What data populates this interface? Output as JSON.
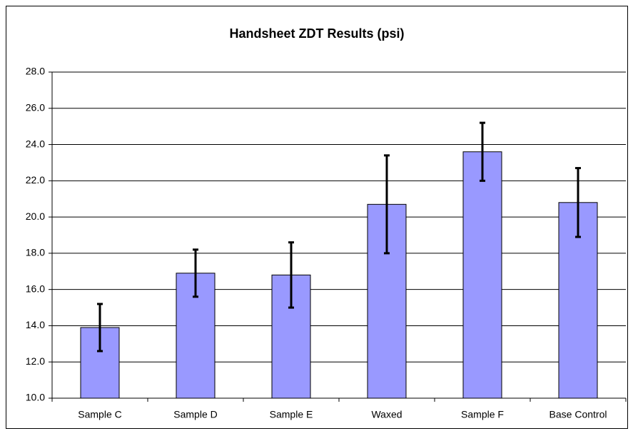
{
  "chart_data": {
    "type": "bar",
    "title": "Handsheet ZDT Results  (psi)",
    "categories": [
      "Sample C",
      "Sample D",
      "Sample E",
      "Waxed",
      "Sample F",
      "Base Control"
    ],
    "values": [
      13.9,
      16.9,
      16.8,
      20.7,
      23.6,
      20.8
    ],
    "errors": [
      1.3,
      1.3,
      1.8,
      2.7,
      1.6,
      1.9
    ],
    "color": "#9999ff",
    "ylim": [
      10,
      28
    ],
    "yticks": [
      {
        "value": 10,
        "label": "10.0"
      },
      {
        "value": 12,
        "label": "12.0"
      },
      {
        "value": 14,
        "label": "14.0"
      },
      {
        "value": 16,
        "label": "16.0"
      },
      {
        "value": 18,
        "label": "18.0"
      },
      {
        "value": 20,
        "label": "20.0"
      },
      {
        "value": 22,
        "label": "22.0"
      },
      {
        "value": 24,
        "label": "24.0"
      },
      {
        "value": 26,
        "label": "26.0"
      },
      {
        "value": 28,
        "label": "28.0"
      }
    ],
    "grid": true
  }
}
